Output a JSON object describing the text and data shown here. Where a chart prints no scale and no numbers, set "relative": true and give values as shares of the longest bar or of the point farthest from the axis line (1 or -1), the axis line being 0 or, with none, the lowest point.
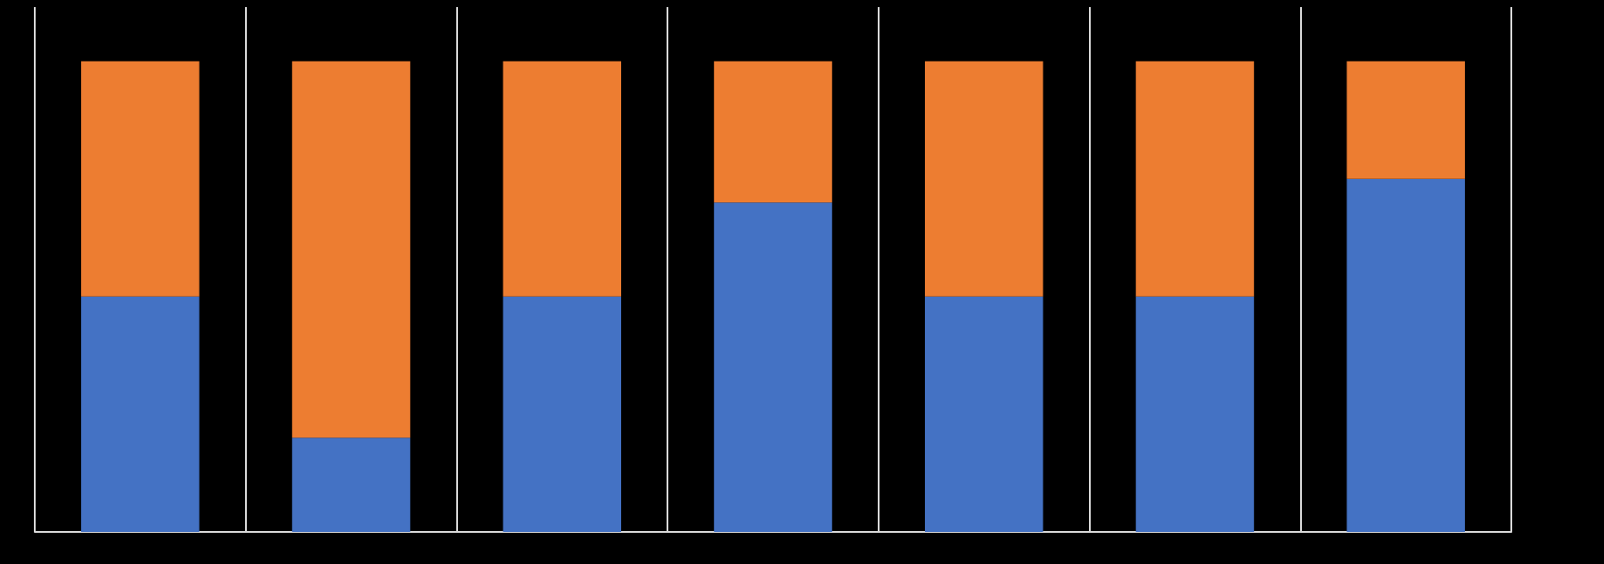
{
  "chart_data": {
    "type": "bar",
    "relative": true,
    "stacked": true,
    "grid": "x",
    "categories": [
      null,
      null,
      null,
      null,
      null,
      null,
      null
    ],
    "series": [
      {
        "color": "#4472c4",
        "values": [
          0.5,
          0.2,
          0.5,
          0.7,
          0.5,
          0.5,
          0.75
        ]
      },
      {
        "color": "#ed7d31",
        "values": [
          0.5,
          0.8,
          0.5,
          0.3,
          0.5,
          0.5,
          0.25
        ]
      }
    ]
  }
}
